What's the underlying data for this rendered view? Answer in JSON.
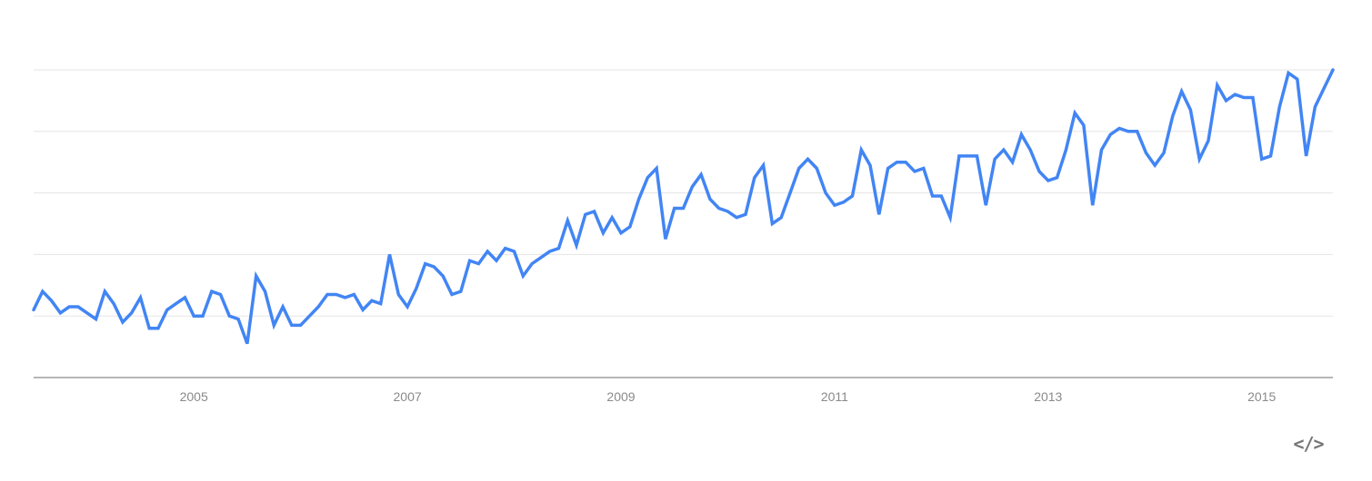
{
  "chart_data": {
    "type": "line",
    "title": "",
    "xlabel": "",
    "ylabel": "",
    "x_start": "2004-01",
    "interval": "month",
    "xlim": [
      "2004-01",
      "2016-03"
    ],
    "ylim": [
      0,
      100
    ],
    "x_ticks": [
      "2005",
      "2007",
      "2009",
      "2011",
      "2013",
      "2015"
    ],
    "y_gridlines": [
      0,
      20,
      40,
      60,
      80,
      100
    ],
    "grid": true,
    "legend": "none",
    "series": [
      {
        "color": "#4285f4",
        "values": [
          22,
          28,
          25,
          21,
          23,
          23,
          21,
          19,
          28,
          24,
          18,
          21,
          26,
          16,
          16,
          22,
          24,
          26,
          20,
          20,
          28,
          27,
          20,
          19,
          11,
          33,
          28,
          17,
          23,
          17,
          17,
          20,
          23,
          27,
          27,
          26,
          27,
          22,
          25,
          24,
          40,
          27,
          23,
          29,
          37,
          36,
          33,
          27,
          28,
          38,
          37,
          41,
          38,
          42,
          41,
          33,
          37,
          39,
          41,
          42,
          51,
          43,
          53,
          54,
          47,
          52,
          47,
          49,
          58,
          65,
          68,
          45,
          55,
          55,
          62,
          66,
          58,
          55,
          54,
          52,
          53,
          65,
          69,
          50,
          52,
          60,
          68,
          71,
          68,
          60,
          56,
          57,
          59,
          74,
          69,
          53,
          68,
          70,
          70,
          67,
          68,
          59,
          59,
          52,
          72,
          72,
          72,
          56,
          71,
          74,
          70,
          79,
          74,
          67,
          64,
          65,
          74,
          86,
          82,
          56,
          74,
          79,
          81,
          80,
          80,
          73,
          69,
          73,
          85,
          93,
          87,
          71,
          77,
          95,
          90,
          92,
          91,
          91,
          71,
          72,
          88,
          99,
          97,
          72,
          88,
          94,
          100
        ]
      }
    ]
  },
  "embed_icon": "code-embed-icon",
  "embed_label": "</>"
}
